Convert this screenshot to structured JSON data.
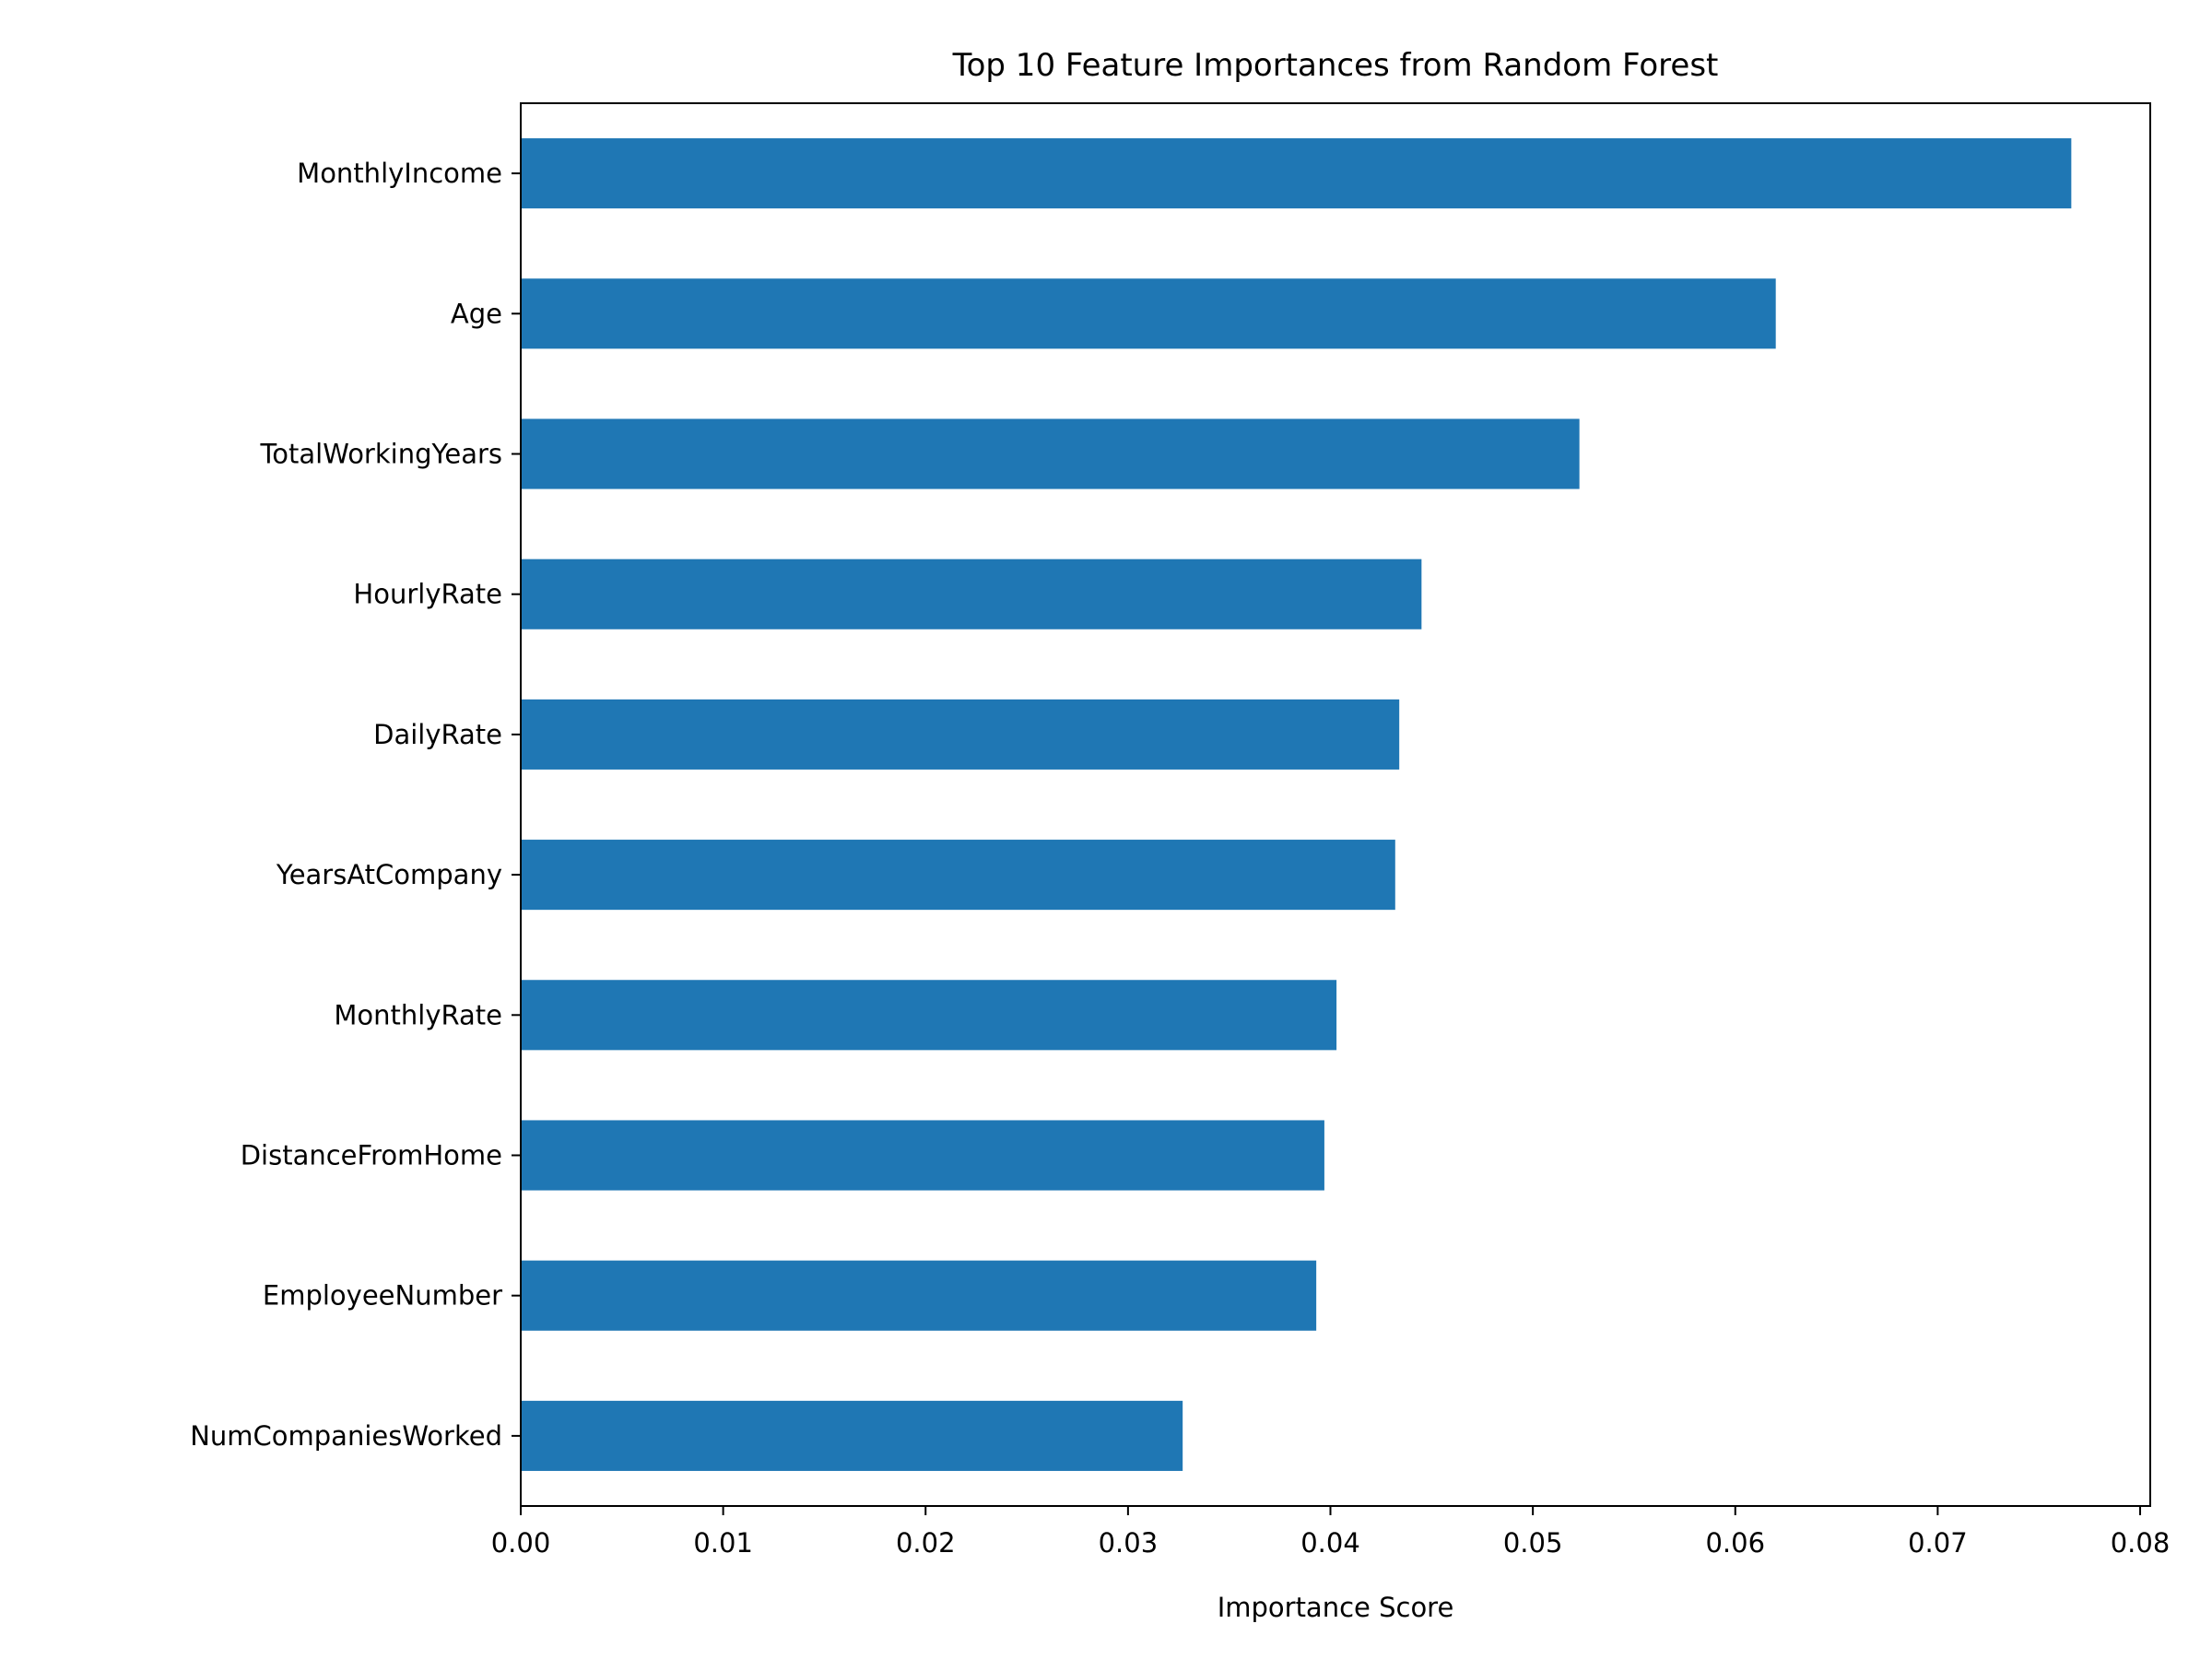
{
  "chart_data": {
    "type": "bar",
    "orientation": "horizontal",
    "title": "Top 10 Feature Importances from Random Forest",
    "xlabel": "Importance Score",
    "ylabel": "",
    "categories": [
      "MonthlyIncome",
      "Age",
      "TotalWorkingYears",
      "HourlyRate",
      "DailyRate",
      "YearsAtCompany",
      "MonthlyRate",
      "DistanceFromHome",
      "EmployeeNumber",
      "NumCompaniesWorked"
    ],
    "values": [
      0.0766,
      0.062,
      0.0523,
      0.0445,
      0.0434,
      0.0432,
      0.0403,
      0.0397,
      0.0393,
      0.0327
    ],
    "xlim": [
      0,
      0.0805
    ],
    "xticks": [
      0,
      0.01,
      0.02,
      0.03,
      0.04,
      0.05,
      0.06,
      0.07,
      0.08
    ],
    "xtick_labels": [
      "0.00",
      "0.01",
      "0.02",
      "0.03",
      "0.04",
      "0.05",
      "0.06",
      "0.07",
      "0.08"
    ],
    "bar_color": "#1f77b4",
    "grid": false,
    "legend": "none"
  }
}
